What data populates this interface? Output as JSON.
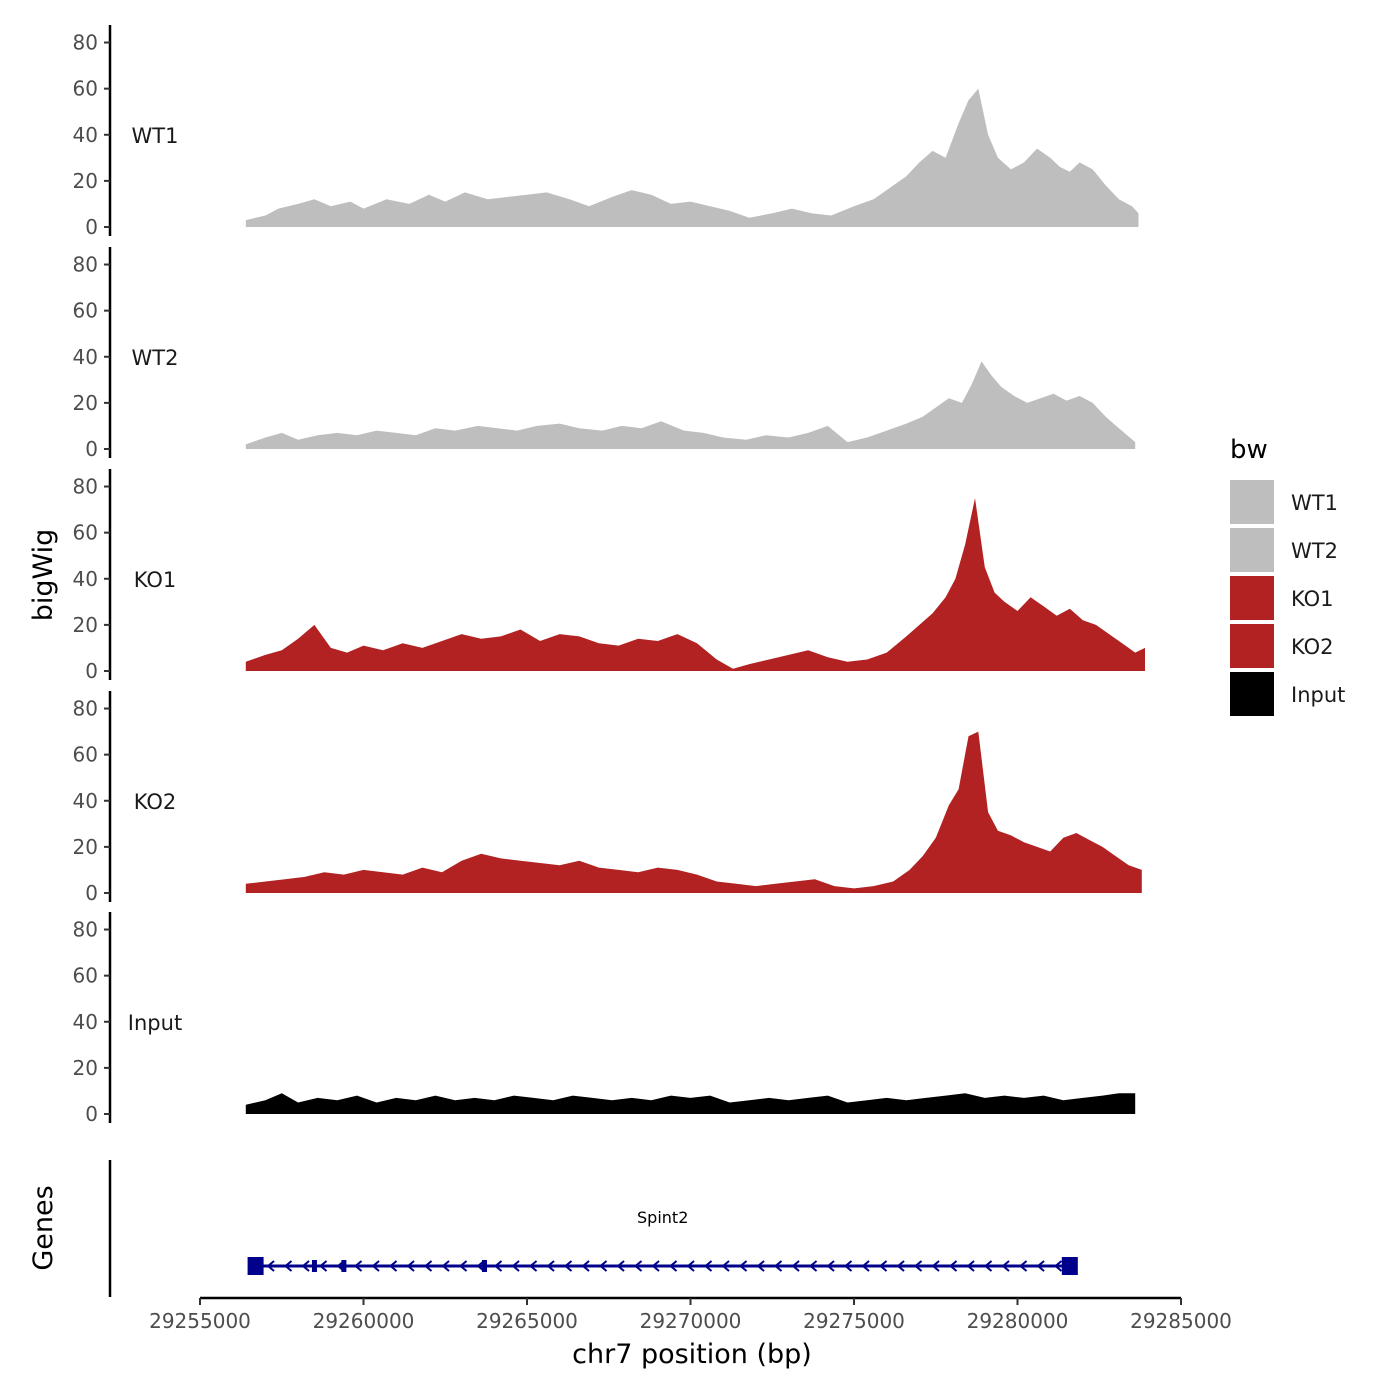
{
  "chart_data": {
    "type": "area",
    "title": "",
    "xlabel": "chr7 position (bp)",
    "ylabel": "bigWig",
    "genes_label": "Genes",
    "xlim": [
      29255000,
      29285000
    ],
    "x_ticks": [
      29255000,
      29260000,
      29265000,
      29270000,
      29275000,
      29280000,
      29285000
    ],
    "x_tick_labels": [
      "29255000",
      "29260000",
      "29265000",
      "29270000",
      "29275000",
      "29280000",
      "29285000"
    ],
    "ylim": [
      0,
      85
    ],
    "y_ticks": [
      0,
      20,
      40,
      60,
      80
    ],
    "y_tick_labels": [
      "0",
      "20",
      "40",
      "60",
      "80"
    ],
    "legend": {
      "title": "bw",
      "position": "right",
      "entries": [
        {
          "label": "WT1",
          "color": "#bebebe"
        },
        {
          "label": "WT2",
          "color": "#bebebe"
        },
        {
          "label": "KO1",
          "color": "#b22222"
        },
        {
          "label": "KO2",
          "color": "#b22222"
        },
        {
          "label": "Input",
          "color": "#000000"
        }
      ]
    },
    "series": [
      {
        "name": "WT1",
        "color": "#bebebe",
        "x": [
          29256400,
          29257000,
          29257400,
          29258000,
          29258500,
          29259000,
          29259600,
          29260000,
          29260700,
          29261400,
          29262000,
          29262500,
          29263100,
          29263800,
          29264400,
          29265000,
          29265600,
          29266300,
          29266900,
          29267600,
          29268200,
          29268800,
          29269400,
          29270000,
          29270600,
          29271200,
          29271800,
          29272500,
          29273100,
          29273700,
          29274300,
          29275000,
          29275600,
          29276100,
          29276600,
          29277000,
          29277400,
          29277800,
          29278200,
          29278500,
          29278800,
          29279100,
          29279400,
          29279800,
          29280200,
          29280600,
          29281000,
          29281300,
          29281600,
          29281900,
          29282300,
          29282700,
          29283100,
          29283500,
          29283700
        ],
        "values": [
          3,
          5,
          8,
          10,
          12,
          9,
          11,
          8,
          12,
          10,
          14,
          11,
          15,
          12,
          13,
          14,
          15,
          12,
          9,
          13,
          16,
          14,
          10,
          11,
          9,
          7,
          4,
          6,
          8,
          6,
          5,
          9,
          12,
          17,
          22,
          28,
          33,
          30,
          45,
          55,
          60,
          40,
          30,
          25,
          28,
          34,
          30,
          26,
          24,
          28,
          25,
          18,
          12,
          9,
          6
        ]
      },
      {
        "name": "WT2",
        "color": "#bebebe",
        "x": [
          29256400,
          29257000,
          29257500,
          29258000,
          29258600,
          29259200,
          29259800,
          29260400,
          29261000,
          29261600,
          29262200,
          29262800,
          29263500,
          29264100,
          29264700,
          29265300,
          29266000,
          29266600,
          29267300,
          29267900,
          29268500,
          29269100,
          29269800,
          29270400,
          29271000,
          29271700,
          29272300,
          29273000,
          29273600,
          29274200,
          29274800,
          29275400,
          29276000,
          29276600,
          29277100,
          29277500,
          29277900,
          29278300,
          29278600,
          29278900,
          29279200,
          29279500,
          29279900,
          29280300,
          29280700,
          29281100,
          29281500,
          29281900,
          29282300,
          29282700,
          29283100,
          29283600
        ],
        "values": [
          2,
          5,
          7,
          4,
          6,
          7,
          6,
          8,
          7,
          6,
          9,
          8,
          10,
          9,
          8,
          10,
          11,
          9,
          8,
          10,
          9,
          12,
          8,
          7,
          5,
          4,
          6,
          5,
          7,
          10,
          3,
          5,
          8,
          11,
          14,
          18,
          22,
          20,
          28,
          38,
          32,
          27,
          23,
          20,
          22,
          24,
          21,
          23,
          20,
          14,
          9,
          3
        ]
      },
      {
        "name": "KO1",
        "color": "#b22222",
        "x": [
          29256400,
          29257000,
          29257500,
          29258000,
          29258500,
          29259000,
          29259500,
          29260000,
          29260600,
          29261200,
          29261800,
          29262400,
          29263000,
          29263600,
          29264200,
          29264800,
          29265400,
          29266000,
          29266600,
          29267200,
          29267800,
          29268400,
          29269000,
          29269600,
          29270200,
          29270800,
          29271300,
          29271800,
          29272400,
          29273000,
          29273600,
          29274200,
          29274800,
          29275400,
          29276000,
          29276600,
          29277000,
          29277400,
          29277800,
          29278100,
          29278400,
          29278700,
          29279000,
          29279300,
          29279600,
          29280000,
          29280400,
          29280800,
          29281200,
          29281600,
          29282000,
          29282400,
          29282800,
          29283200,
          29283600,
          29283900
        ],
        "values": [
          4,
          7,
          9,
          14,
          20,
          10,
          8,
          11,
          9,
          12,
          10,
          13,
          16,
          14,
          15,
          18,
          13,
          16,
          15,
          12,
          11,
          14,
          13,
          16,
          12,
          5,
          1,
          3,
          5,
          7,
          9,
          6,
          4,
          5,
          8,
          15,
          20,
          25,
          32,
          40,
          55,
          75,
          45,
          34,
          30,
          26,
          32,
          28,
          24,
          27,
          22,
          20,
          16,
          12,
          8,
          10
        ]
      },
      {
        "name": "KO2",
        "color": "#b22222",
        "x": [
          29256400,
          29257000,
          29257600,
          29258200,
          29258800,
          29259400,
          29260000,
          29260600,
          29261200,
          29261800,
          29262400,
          29263000,
          29263600,
          29264200,
          29264800,
          29265400,
          29266000,
          29266600,
          29267200,
          29267800,
          29268400,
          29269000,
          29269600,
          29270200,
          29270800,
          29271400,
          29272000,
          29272600,
          29273200,
          29273800,
          29274400,
          29275000,
          29275600,
          29276200,
          29276700,
          29277100,
          29277500,
          29277900,
          29278200,
          29278500,
          29278800,
          29279100,
          29279400,
          29279800,
          29280200,
          29280600,
          29281000,
          29281400,
          29281800,
          29282200,
          29282600,
          29283000,
          29283400,
          29283800
        ],
        "values": [
          4,
          5,
          6,
          7,
          9,
          8,
          10,
          9,
          8,
          11,
          9,
          14,
          17,
          15,
          14,
          13,
          12,
          14,
          11,
          10,
          9,
          11,
          10,
          8,
          5,
          4,
          3,
          4,
          5,
          6,
          3,
          2,
          3,
          5,
          10,
          16,
          24,
          38,
          45,
          68,
          70,
          35,
          27,
          25,
          22,
          20,
          18,
          24,
          26,
          23,
          20,
          16,
          12,
          10
        ]
      },
      {
        "name": "Input",
        "color": "#000000",
        "x": [
          29256400,
          29257000,
          29257500,
          29258000,
          29258600,
          29259200,
          29259800,
          29260400,
          29261000,
          29261600,
          29262200,
          29262800,
          29263400,
          29264000,
          29264600,
          29265200,
          29265800,
          29266400,
          29267000,
          29267600,
          29268200,
          29268800,
          29269400,
          29270000,
          29270600,
          29271200,
          29271800,
          29272400,
          29273000,
          29273600,
          29274200,
          29274800,
          29275400,
          29276000,
          29276600,
          29277200,
          29277800,
          29278400,
          29279000,
          29279600,
          29280200,
          29280800,
          29281400,
          29282000,
          29282600,
          29283100,
          29283600
        ],
        "values": [
          4,
          6,
          9,
          5,
          7,
          6,
          8,
          5,
          7,
          6,
          8,
          6,
          7,
          6,
          8,
          7,
          6,
          8,
          7,
          6,
          7,
          6,
          8,
          7,
          8,
          5,
          6,
          7,
          6,
          7,
          8,
          5,
          6,
          7,
          6,
          7,
          8,
          9,
          7,
          8,
          7,
          8,
          6,
          7,
          8,
          9,
          9
        ]
      }
    ],
    "gene_track": {
      "gene_name": "Spint2",
      "strand": "-",
      "start": 29256500,
      "end": 29281800,
      "exons": [
        29256700,
        29258500,
        29259400,
        29263700,
        29281600
      ],
      "color": "#00008b"
    }
  }
}
